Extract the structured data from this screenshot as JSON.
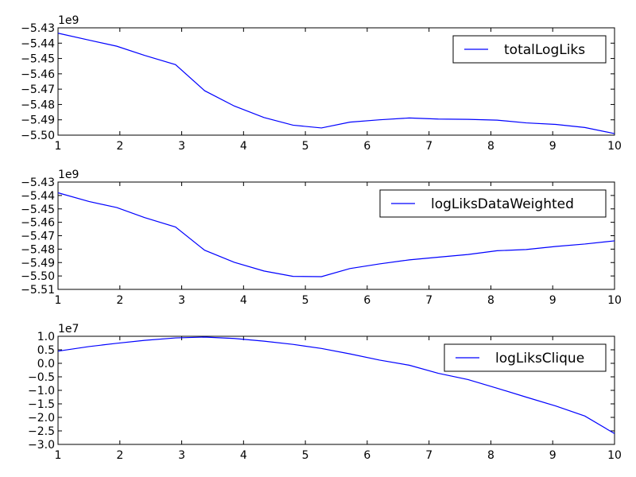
{
  "chart_data": [
    {
      "type": "line",
      "title": "",
      "xlabel": "",
      "ylabel": "",
      "xlim": [
        1,
        10
      ],
      "ylim": [
        -5.5,
        -5.43
      ],
      "y_offset_label": "1e9",
      "x_ticks": [
        "1",
        "2",
        "3",
        "4",
        "5",
        "6",
        "7",
        "8",
        "9",
        "10"
      ],
      "y_ticks": [
        "−5.50",
        "−5.49",
        "−5.48",
        "−5.47",
        "−5.46",
        "−5.45",
        "−5.44",
        "−5.43"
      ],
      "legend_position": "top-right",
      "series": [
        {
          "name": "totalLogLiks",
          "x": [
            1,
            1.5,
            1.95,
            2.4,
            2.9,
            3.37,
            3.85,
            4.33,
            4.8,
            5.26,
            5.72,
            6.2,
            6.68,
            7.15,
            7.63,
            8.1,
            8.57,
            9.05,
            9.52,
            10
          ],
          "y": [
            -5.4335,
            -5.438,
            -5.442,
            -5.448,
            -5.454,
            -5.471,
            -5.481,
            -5.4885,
            -5.4935,
            -5.4953,
            -5.4915,
            -5.49,
            -5.4888,
            -5.4895,
            -5.4897,
            -5.4902,
            -5.492,
            -5.493,
            -5.495,
            -5.499
          ],
          "color": "#0000ff"
        }
      ]
    },
    {
      "type": "line",
      "title": "",
      "xlabel": "",
      "ylabel": "",
      "xlim": [
        1,
        10
      ],
      "ylim": [
        -5.51,
        -5.43
      ],
      "y_offset_label": "1e9",
      "x_ticks": [
        "1",
        "2",
        "3",
        "4",
        "5",
        "6",
        "7",
        "8",
        "9",
        "10"
      ],
      "y_ticks": [
        "−5.51",
        "−5.50",
        "−5.49",
        "−5.48",
        "−5.47",
        "−5.46",
        "−5.45",
        "−5.44",
        "−5.43"
      ],
      "legend_position": "top-right",
      "series": [
        {
          "name": "logLiksDataWeighted",
          "x": [
            1,
            1.5,
            1.95,
            2.4,
            2.9,
            3.37,
            3.85,
            4.33,
            4.8,
            5.26,
            5.72,
            6.2,
            6.68,
            7.15,
            7.63,
            8.1,
            8.57,
            9.05,
            9.52,
            10
          ],
          "y": [
            -5.438,
            -5.4445,
            -5.449,
            -5.4565,
            -5.4635,
            -5.4808,
            -5.4898,
            -5.4963,
            -5.5003,
            -5.5005,
            -5.4945,
            -5.491,
            -5.488,
            -5.486,
            -5.484,
            -5.4812,
            -5.4803,
            -5.478,
            -5.4762,
            -5.4738
          ],
          "color": "#0000ff"
        }
      ]
    },
    {
      "type": "line",
      "title": "",
      "xlabel": "",
      "ylabel": "",
      "xlim": [
        1,
        10
      ],
      "ylim": [
        -3.0,
        1.0
      ],
      "y_offset_label": "1e7",
      "x_ticks": [
        "1",
        "2",
        "3",
        "4",
        "5",
        "6",
        "7",
        "8",
        "9",
        "10"
      ],
      "y_ticks": [
        "−3.0",
        "−2.5",
        "−2.0",
        "−1.5",
        "−1.0",
        "−0.5",
        "0.0",
        "0.5",
        "1.0"
      ],
      "legend_position": "top-right",
      "series": [
        {
          "name": "logLiksClique",
          "x": [
            1,
            1.5,
            1.95,
            2.4,
            2.9,
            3.37,
            3.85,
            4.33,
            4.8,
            5.26,
            5.72,
            6.2,
            6.68,
            7.15,
            7.63,
            8.1,
            8.57,
            9.05,
            9.52,
            10
          ],
          "y": [
            0.45,
            0.62,
            0.74,
            0.85,
            0.94,
            0.97,
            0.92,
            0.82,
            0.7,
            0.55,
            0.35,
            0.12,
            -0.07,
            -0.37,
            -0.6,
            -0.92,
            -1.25,
            -1.58,
            -1.95,
            -2.6
          ],
          "color": "#0000ff"
        }
      ]
    }
  ]
}
